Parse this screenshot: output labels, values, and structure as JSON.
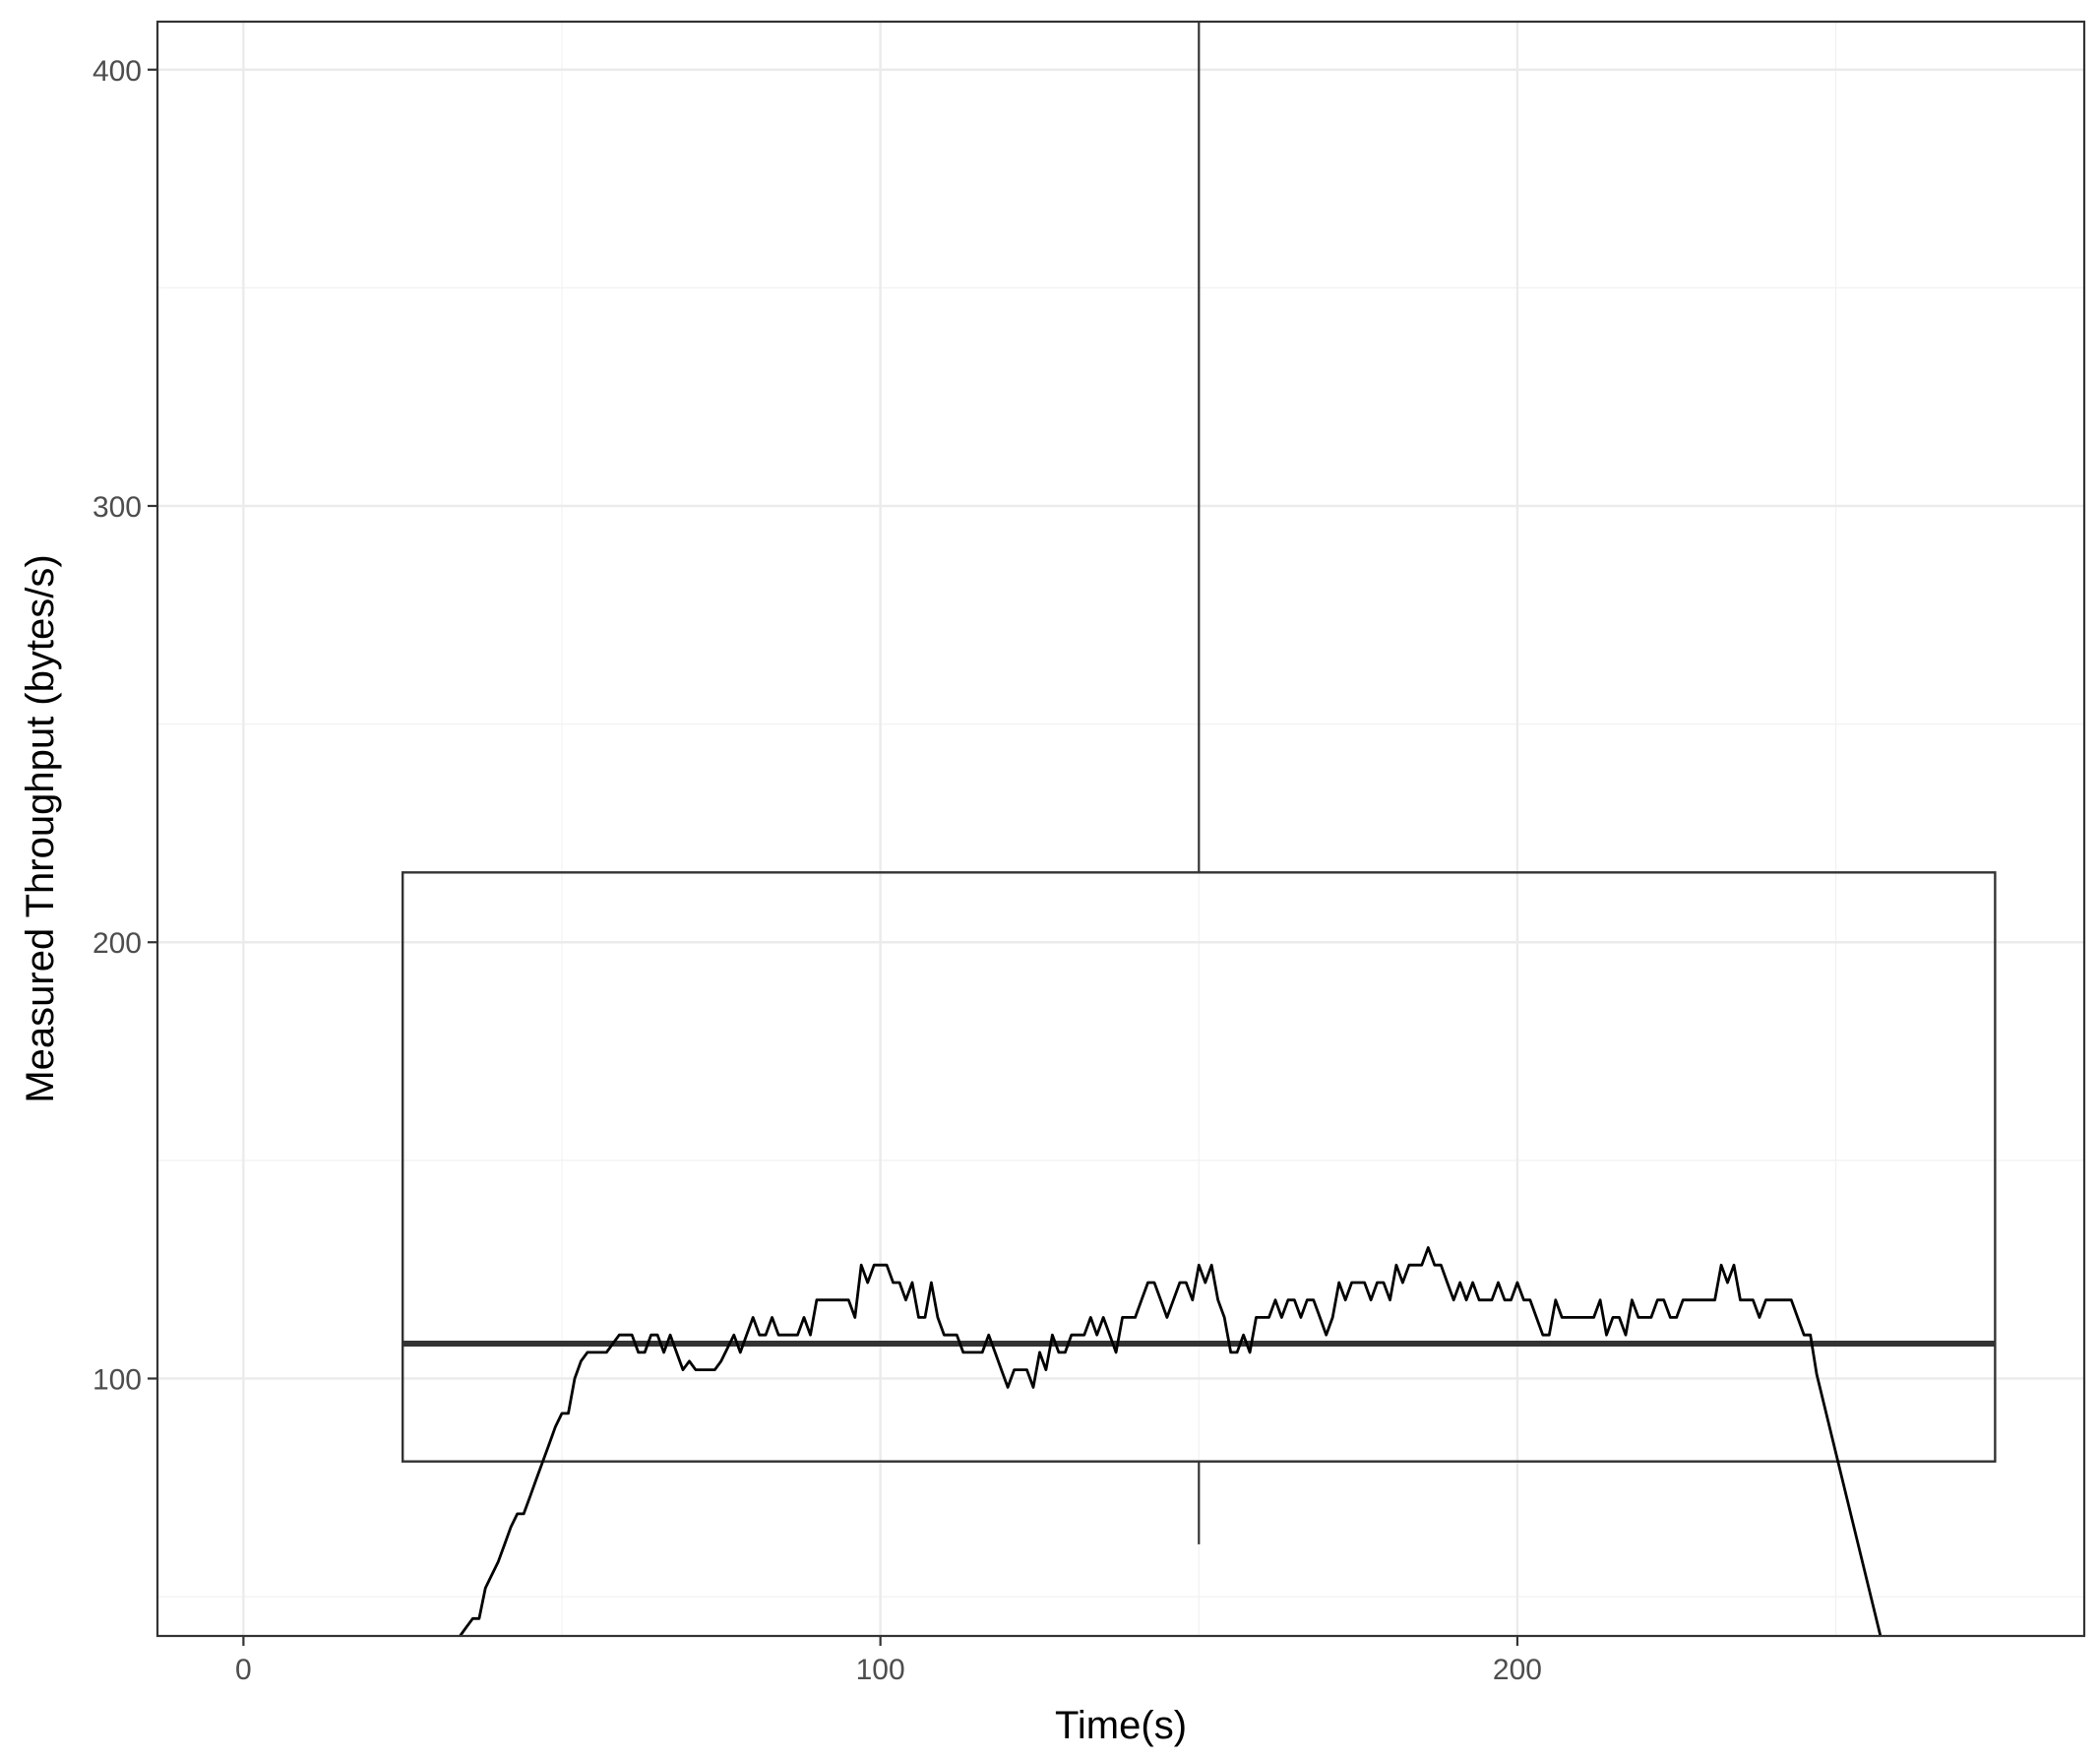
{
  "chart_data": {
    "type": "line",
    "title": "",
    "xlabel": "Time(s)",
    "ylabel": "Measured Throughput (bytes/s)",
    "xlim": [
      -13.5,
      289
    ],
    "ylim": [
      41,
      411
    ],
    "grid": true,
    "x_ticks": [
      0,
      100,
      200
    ],
    "y_ticks": [
      100,
      200,
      300,
      400
    ],
    "x_tick_labels": [
      "0",
      "100",
      "200"
    ],
    "y_tick_labels": [
      "100",
      "200",
      "300",
      "400"
    ],
    "colors": {
      "line": "#000000",
      "box": "#333333",
      "grid_major": "#ebebeb",
      "grid_minor": "#f2f2f2",
      "panel_border": "#333333"
    },
    "boxplot": {
      "x_center": 150,
      "x_left": 25,
      "x_right": 275,
      "lower_whisker": 62,
      "q1": 81,
      "median": 108,
      "q3": 216,
      "upper_whisker": 411
    },
    "series": [
      {
        "points": [
          [
            34,
            41
          ],
          [
            35,
            43
          ],
          [
            36,
            45
          ],
          [
            37,
            45
          ],
          [
            38,
            52
          ],
          [
            39,
            55
          ],
          [
            40,
            58
          ],
          [
            41,
            62
          ],
          [
            42,
            66
          ],
          [
            43,
            69
          ],
          [
            44,
            69
          ],
          [
            45,
            73
          ],
          [
            46,
            77
          ],
          [
            47,
            81
          ],
          [
            48,
            85
          ],
          [
            49,
            89
          ],
          [
            50,
            92
          ],
          [
            51,
            92
          ],
          [
            52,
            100
          ],
          [
            53,
            104
          ],
          [
            54,
            106
          ],
          [
            55,
            106
          ],
          [
            56,
            106
          ],
          [
            57,
            106
          ],
          [
            58,
            108
          ],
          [
            59,
            110
          ],
          [
            60,
            110
          ],
          [
            61,
            110
          ],
          [
            62,
            106
          ],
          [
            63,
            106
          ],
          [
            64,
            110
          ],
          [
            65,
            110
          ],
          [
            66,
            106
          ],
          [
            67,
            110
          ],
          [
            68,
            106
          ],
          [
            69,
            102
          ],
          [
            70,
            104
          ],
          [
            71,
            102
          ],
          [
            72,
            102
          ],
          [
            73,
            102
          ],
          [
            74,
            102
          ],
          [
            75,
            104
          ],
          [
            76,
            107
          ],
          [
            77,
            110
          ],
          [
            78,
            106
          ],
          [
            79,
            110
          ],
          [
            80,
            114
          ],
          [
            81,
            110
          ],
          [
            82,
            110
          ],
          [
            83,
            114
          ],
          [
            84,
            110
          ],
          [
            85,
            110
          ],
          [
            86,
            110
          ],
          [
            87,
            110
          ],
          [
            88,
            114
          ],
          [
            89,
            110
          ],
          [
            90,
            118
          ],
          [
            91,
            118
          ],
          [
            92,
            118
          ],
          [
            93,
            118
          ],
          [
            94,
            118
          ],
          [
            95,
            118
          ],
          [
            96,
            114
          ],
          [
            97,
            126
          ],
          [
            98,
            122
          ],
          [
            99,
            126
          ],
          [
            100,
            126
          ],
          [
            101,
            126
          ],
          [
            102,
            122
          ],
          [
            103,
            122
          ],
          [
            104,
            118
          ],
          [
            105,
            122
          ],
          [
            106,
            114
          ],
          [
            107,
            114
          ],
          [
            108,
            122
          ],
          [
            109,
            114
          ],
          [
            110,
            110
          ],
          [
            111,
            110
          ],
          [
            112,
            110
          ],
          [
            113,
            106
          ],
          [
            114,
            106
          ],
          [
            115,
            106
          ],
          [
            116,
            106
          ],
          [
            117,
            110
          ],
          [
            118,
            106
          ],
          [
            119,
            102
          ],
          [
            120,
            98
          ],
          [
            121,
            102
          ],
          [
            122,
            102
          ],
          [
            123,
            102
          ],
          [
            124,
            98
          ],
          [
            125,
            106
          ],
          [
            126,
            102
          ],
          [
            127,
            110
          ],
          [
            128,
            106
          ],
          [
            129,
            106
          ],
          [
            130,
            110
          ],
          [
            131,
            110
          ],
          [
            132,
            110
          ],
          [
            133,
            114
          ],
          [
            134,
            110
          ],
          [
            135,
            114
          ],
          [
            136,
            110
          ],
          [
            137,
            106
          ],
          [
            138,
            114
          ],
          [
            139,
            114
          ],
          [
            140,
            114
          ],
          [
            141,
            118
          ],
          [
            142,
            122
          ],
          [
            143,
            122
          ],
          [
            144,
            118
          ],
          [
            145,
            114
          ],
          [
            146,
            118
          ],
          [
            147,
            122
          ],
          [
            148,
            122
          ],
          [
            149,
            118
          ],
          [
            150,
            126
          ],
          [
            151,
            122
          ],
          [
            152,
            126
          ],
          [
            153,
            118
          ],
          [
            154,
            114
          ],
          [
            155,
            106
          ],
          [
            156,
            106
          ],
          [
            157,
            110
          ],
          [
            158,
            106
          ],
          [
            159,
            114
          ],
          [
            160,
            114
          ],
          [
            161,
            114
          ],
          [
            162,
            118
          ],
          [
            163,
            114
          ],
          [
            164,
            118
          ],
          [
            165,
            118
          ],
          [
            166,
            114
          ],
          [
            167,
            118
          ],
          [
            168,
            118
          ],
          [
            169,
            114
          ],
          [
            170,
            110
          ],
          [
            171,
            114
          ],
          [
            172,
            122
          ],
          [
            173,
            118
          ],
          [
            174,
            122
          ],
          [
            175,
            122
          ],
          [
            176,
            122
          ],
          [
            177,
            118
          ],
          [
            178,
            122
          ],
          [
            179,
            122
          ],
          [
            180,
            118
          ],
          [
            181,
            126
          ],
          [
            182,
            122
          ],
          [
            183,
            126
          ],
          [
            184,
            126
          ],
          [
            185,
            126
          ],
          [
            186,
            130
          ],
          [
            187,
            126
          ],
          [
            188,
            126
          ],
          [
            189,
            122
          ],
          [
            190,
            118
          ],
          [
            191,
            122
          ],
          [
            192,
            118
          ],
          [
            193,
            122
          ],
          [
            194,
            118
          ],
          [
            195,
            118
          ],
          [
            196,
            118
          ],
          [
            197,
            122
          ],
          [
            198,
            118
          ],
          [
            199,
            118
          ],
          [
            200,
            122
          ],
          [
            201,
            118
          ],
          [
            202,
            118
          ],
          [
            203,
            114
          ],
          [
            204,
            110
          ],
          [
            205,
            110
          ],
          [
            206,
            118
          ],
          [
            207,
            114
          ],
          [
            208,
            114
          ],
          [
            209,
            114
          ],
          [
            210,
            114
          ],
          [
            211,
            114
          ],
          [
            212,
            114
          ],
          [
            213,
            118
          ],
          [
            214,
            110
          ],
          [
            215,
            114
          ],
          [
            216,
            114
          ],
          [
            217,
            110
          ],
          [
            218,
            118
          ],
          [
            219,
            114
          ],
          [
            220,
            114
          ],
          [
            221,
            114
          ],
          [
            222,
            118
          ],
          [
            223,
            118
          ],
          [
            224,
            114
          ],
          [
            225,
            114
          ],
          [
            226,
            118
          ],
          [
            227,
            118
          ],
          [
            228,
            118
          ],
          [
            229,
            118
          ],
          [
            230,
            118
          ],
          [
            231,
            118
          ],
          [
            232,
            126
          ],
          [
            233,
            122
          ],
          [
            234,
            126
          ],
          [
            235,
            118
          ],
          [
            236,
            118
          ],
          [
            237,
            118
          ],
          [
            238,
            114
          ],
          [
            239,
            118
          ],
          [
            240,
            118
          ],
          [
            241,
            118
          ],
          [
            242,
            118
          ],
          [
            243,
            118
          ],
          [
            244,
            114
          ],
          [
            245,
            110
          ],
          [
            246,
            110
          ],
          [
            247,
            101
          ],
          [
            257,
            41
          ]
        ]
      }
    ]
  }
}
